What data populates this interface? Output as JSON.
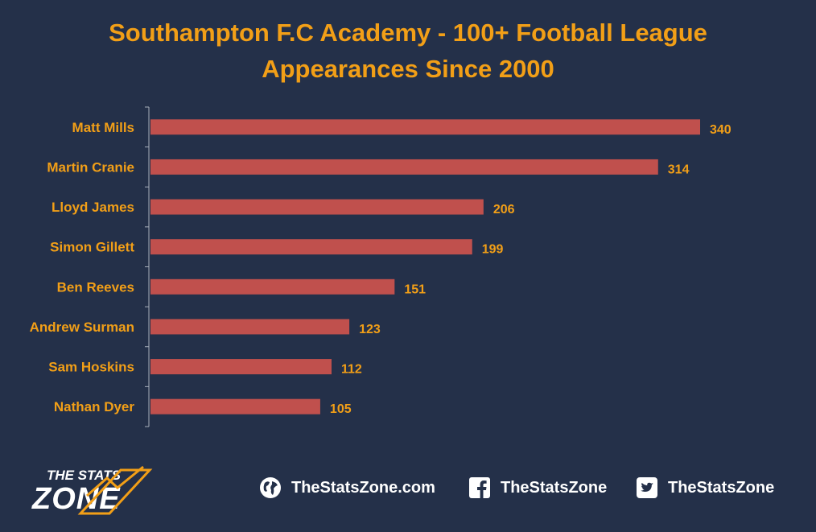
{
  "title_line1": "Southampton F.C Academy - 100+ Football League",
  "title_line2": "Appearances Since 2000",
  "colors": {
    "background": "#243049",
    "bar": "#c0504d",
    "accent": "#f29f17",
    "axis": "#a9b0bc",
    "text": "#ffffff"
  },
  "chart_data": {
    "type": "bar",
    "orientation": "horizontal",
    "categories": [
      "Matt Mills",
      "Martin Cranie",
      "Lloyd James",
      "Simon Gillett",
      "Ben Reeves",
      "Andrew Surman",
      "Sam Hoskins",
      "Nathan Dyer"
    ],
    "values": [
      340,
      314,
      206,
      199,
      151,
      123,
      112,
      105
    ],
    "title": "Southampton F.C Academy - 100+ Football League Appearances Since 2000",
    "xlim": [
      0,
      340
    ],
    "grid": false,
    "data_labels": true
  },
  "footer": {
    "logo_line1": "THE STATS",
    "logo_line2": "ZONE",
    "website": "TheStatsZone.com",
    "facebook": "TheStatsZone",
    "twitter": "TheStatsZone",
    "icons": [
      "globe-icon",
      "facebook-icon",
      "twitter-icon"
    ]
  }
}
